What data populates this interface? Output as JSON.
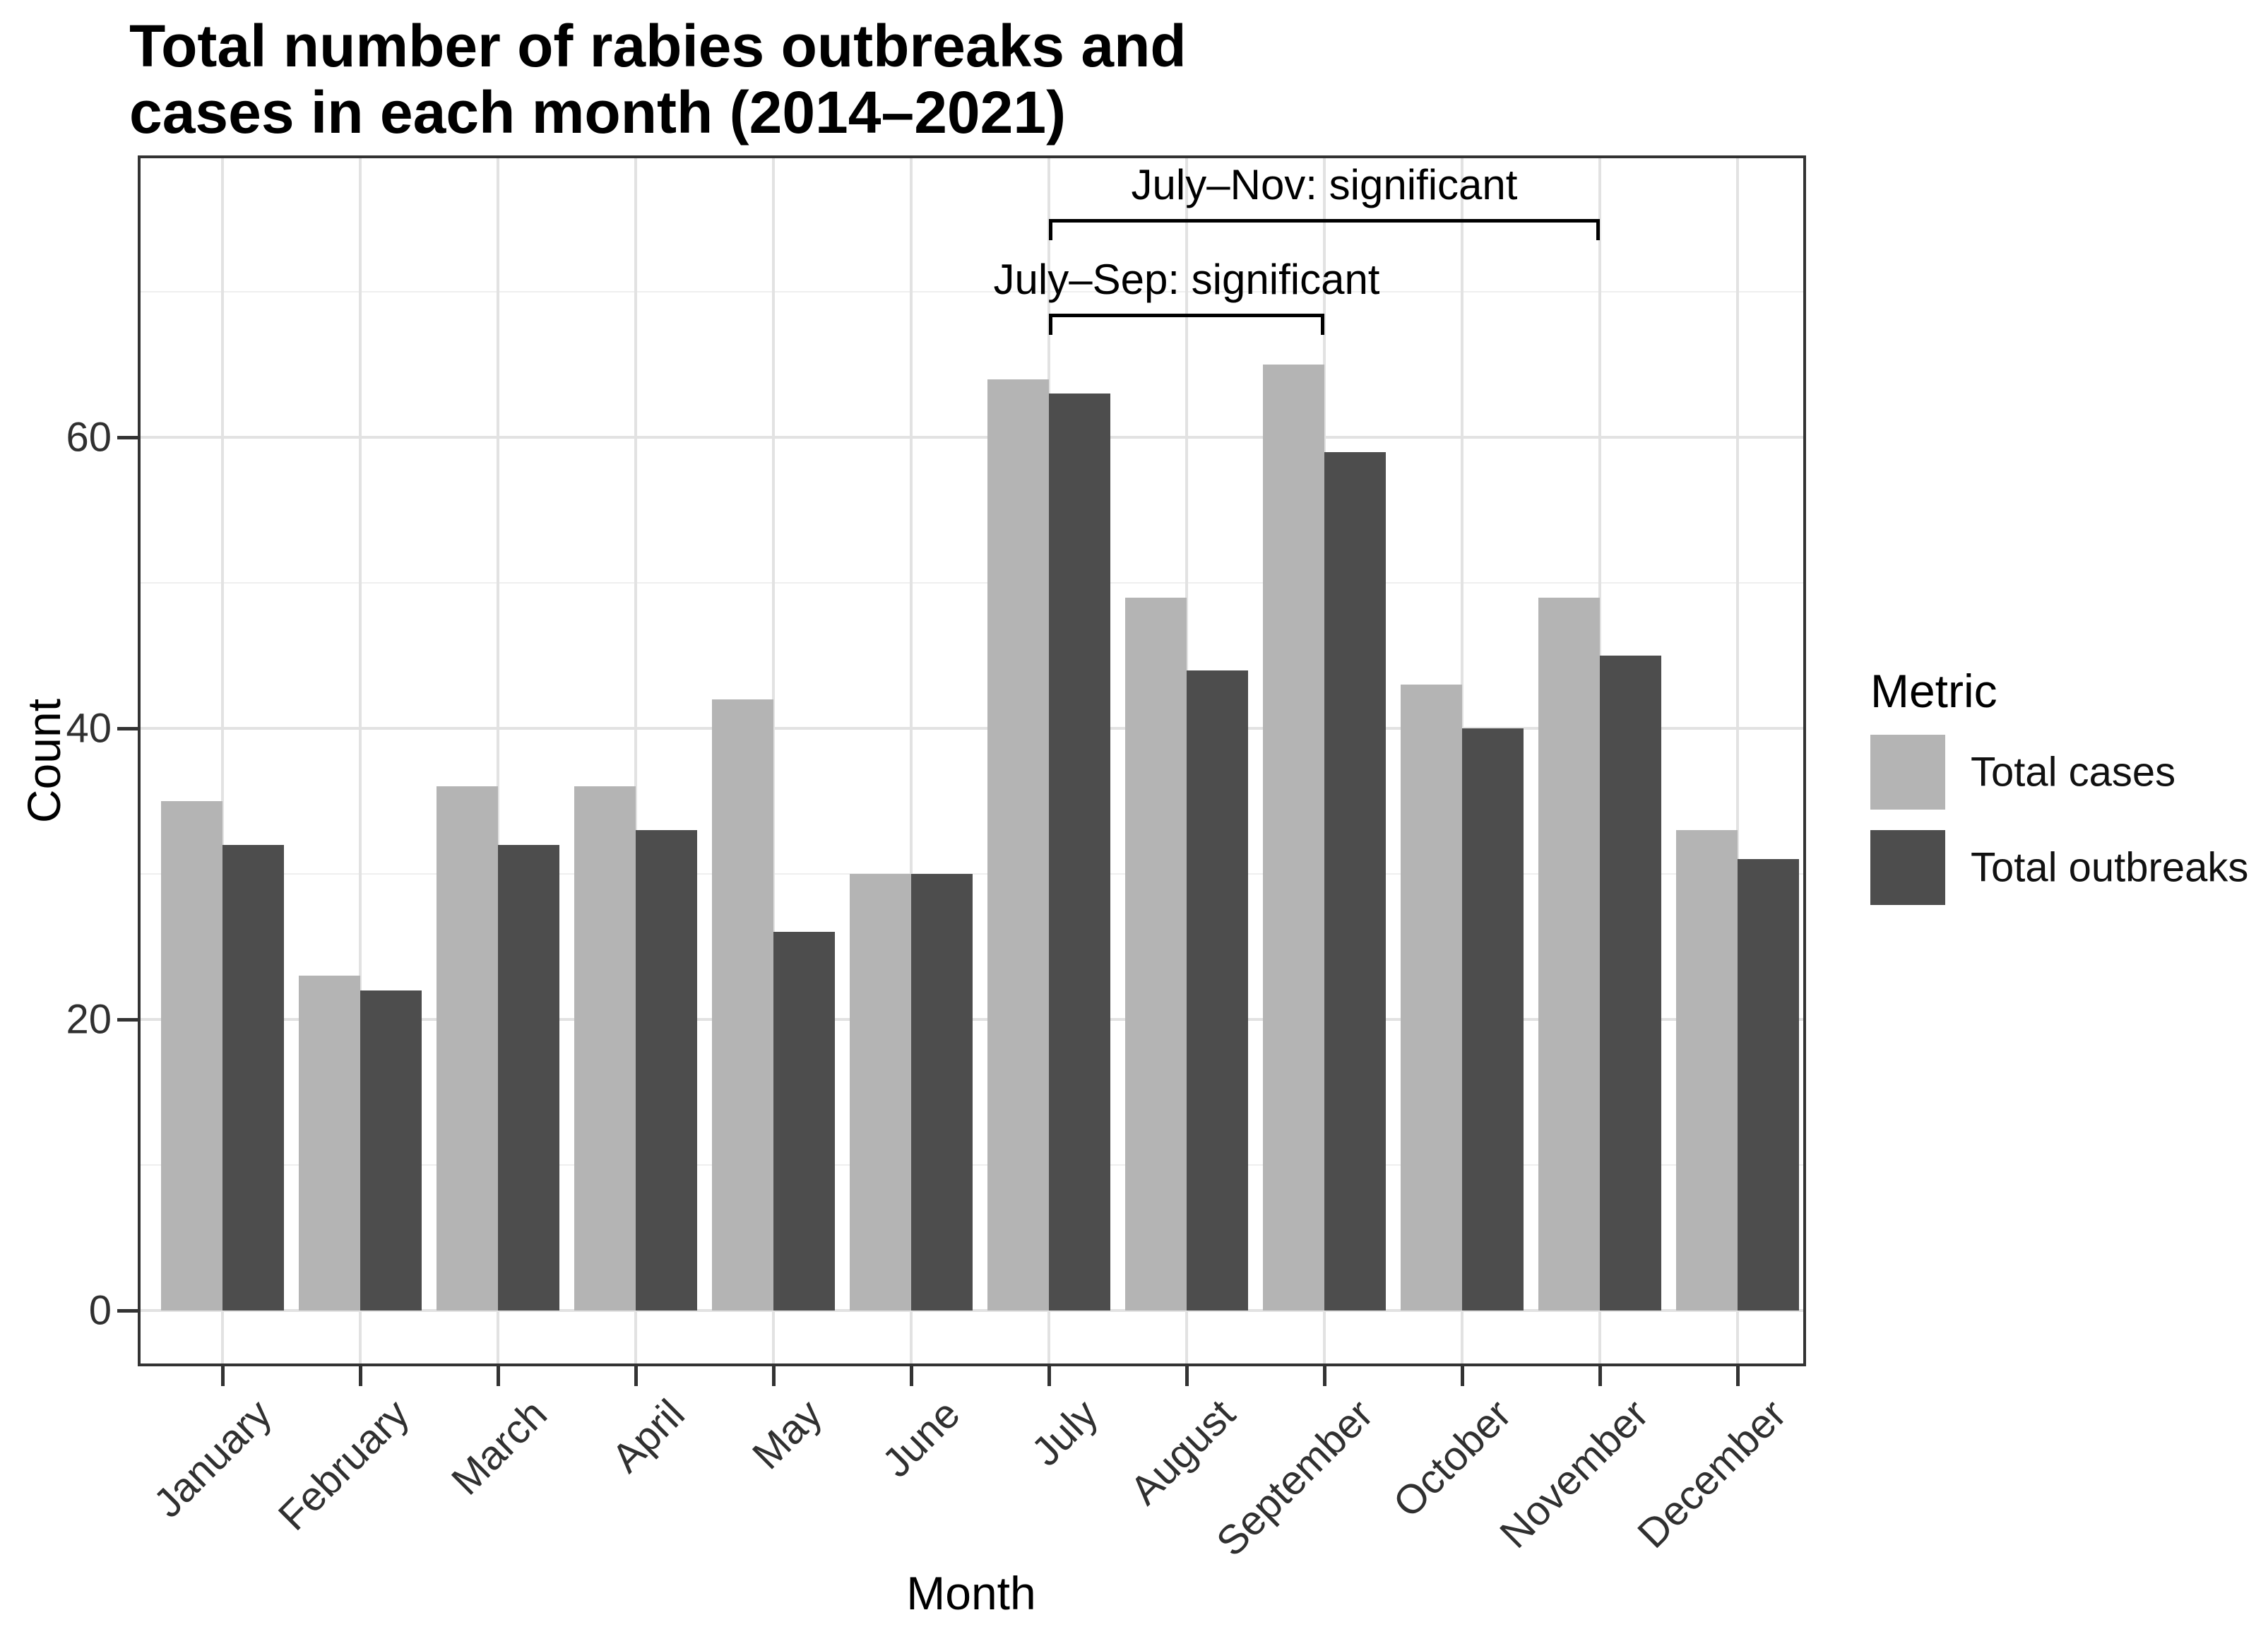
{
  "title": {
    "line1": "Total number of rabies outbreaks and",
    "line2": "cases in each month (2014–2021)"
  },
  "axes": {
    "x_title": "Month",
    "y_title": "Count",
    "y_tick_labels": [
      "0",
      "20",
      "40",
      "60"
    ]
  },
  "legend": {
    "title": "Metric",
    "items": [
      {
        "label": "Total cases",
        "color": "#b4b4b4"
      },
      {
        "label": "Total outbreaks",
        "color": "#4d4d4d"
      }
    ]
  },
  "chart_data": {
    "type": "bar",
    "title": "Total number of rabies outbreaks and cases in each month (2014–2021)",
    "xlabel": "Month",
    "ylabel": "Count",
    "categories": [
      "January",
      "February",
      "March",
      "April",
      "May",
      "June",
      "July",
      "August",
      "September",
      "October",
      "November",
      "December"
    ],
    "series": [
      {
        "name": "Total cases",
        "color": "#b4b4b4",
        "values": [
          35,
          23,
          36,
          36,
          42,
          30,
          64,
          49,
          65,
          43,
          49,
          33
        ]
      },
      {
        "name": "Total outbreaks",
        "color": "#4d4d4d",
        "values": [
          32,
          22,
          32,
          33,
          26,
          30,
          63,
          44,
          59,
          40,
          45,
          31
        ]
      }
    ],
    "y_ticks": [
      0,
      20,
      40,
      60
    ],
    "y_minor_gridlines": [
      10,
      30,
      50,
      70
    ],
    "ylim": [
      -3.6,
      79.2
    ],
    "grid": true,
    "legend_title": "Metric",
    "legend_position": "right",
    "x_tick_angle": 45,
    "annotations": [
      {
        "label": "July–Nov: significant",
        "from": "July",
        "to": "November",
        "y": 75
      },
      {
        "label": "July–Sep: significant",
        "from": "July",
        "to": "September",
        "y": 68.5
      }
    ]
  },
  "colors": {
    "bar_light": "#b4b4b4",
    "bar_dark": "#4d4d4d",
    "grid_major": "#e2e2e2",
    "grid_minor": "#efefef",
    "panel_border": "#333333",
    "annotation": "#000000"
  }
}
